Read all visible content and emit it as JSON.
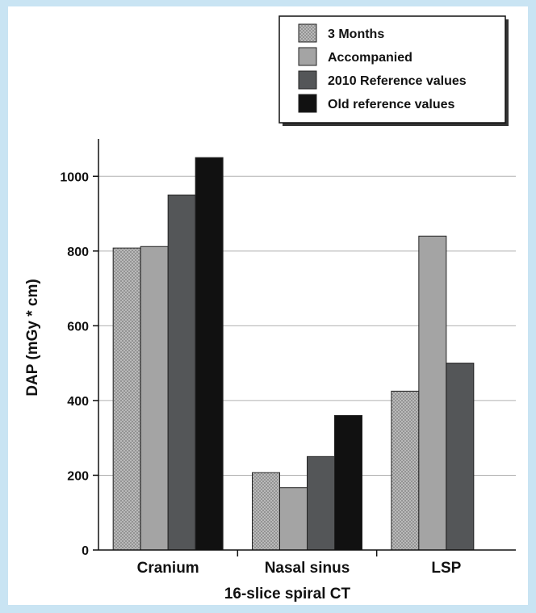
{
  "chart_data": {
    "type": "bar",
    "xlabel": "16-slice spiral CT",
    "ylabel": "DAP (mGy * cm)",
    "ylim": [
      0,
      1100
    ],
    "yticks": [
      0,
      200,
      400,
      600,
      800,
      1000
    ],
    "grid": true,
    "legend_position": "top-right",
    "categories": [
      "Cranium",
      "Nasal sinus",
      "LSP"
    ],
    "series": [
      {
        "name": "3 Months",
        "color": "#b8b8b8",
        "pattern": "crosshatch",
        "values": [
          808,
          207,
          425
        ]
      },
      {
        "name": "Accompanied",
        "color": "#a4a4a4",
        "values": [
          812,
          167,
          840
        ]
      },
      {
        "name": "2010 Reference values",
        "color": "#545658",
        "values": [
          950,
          250,
          500
        ]
      },
      {
        "name": "Old reference values",
        "color": "#111111",
        "values": [
          1050,
          360,
          null
        ]
      }
    ]
  }
}
